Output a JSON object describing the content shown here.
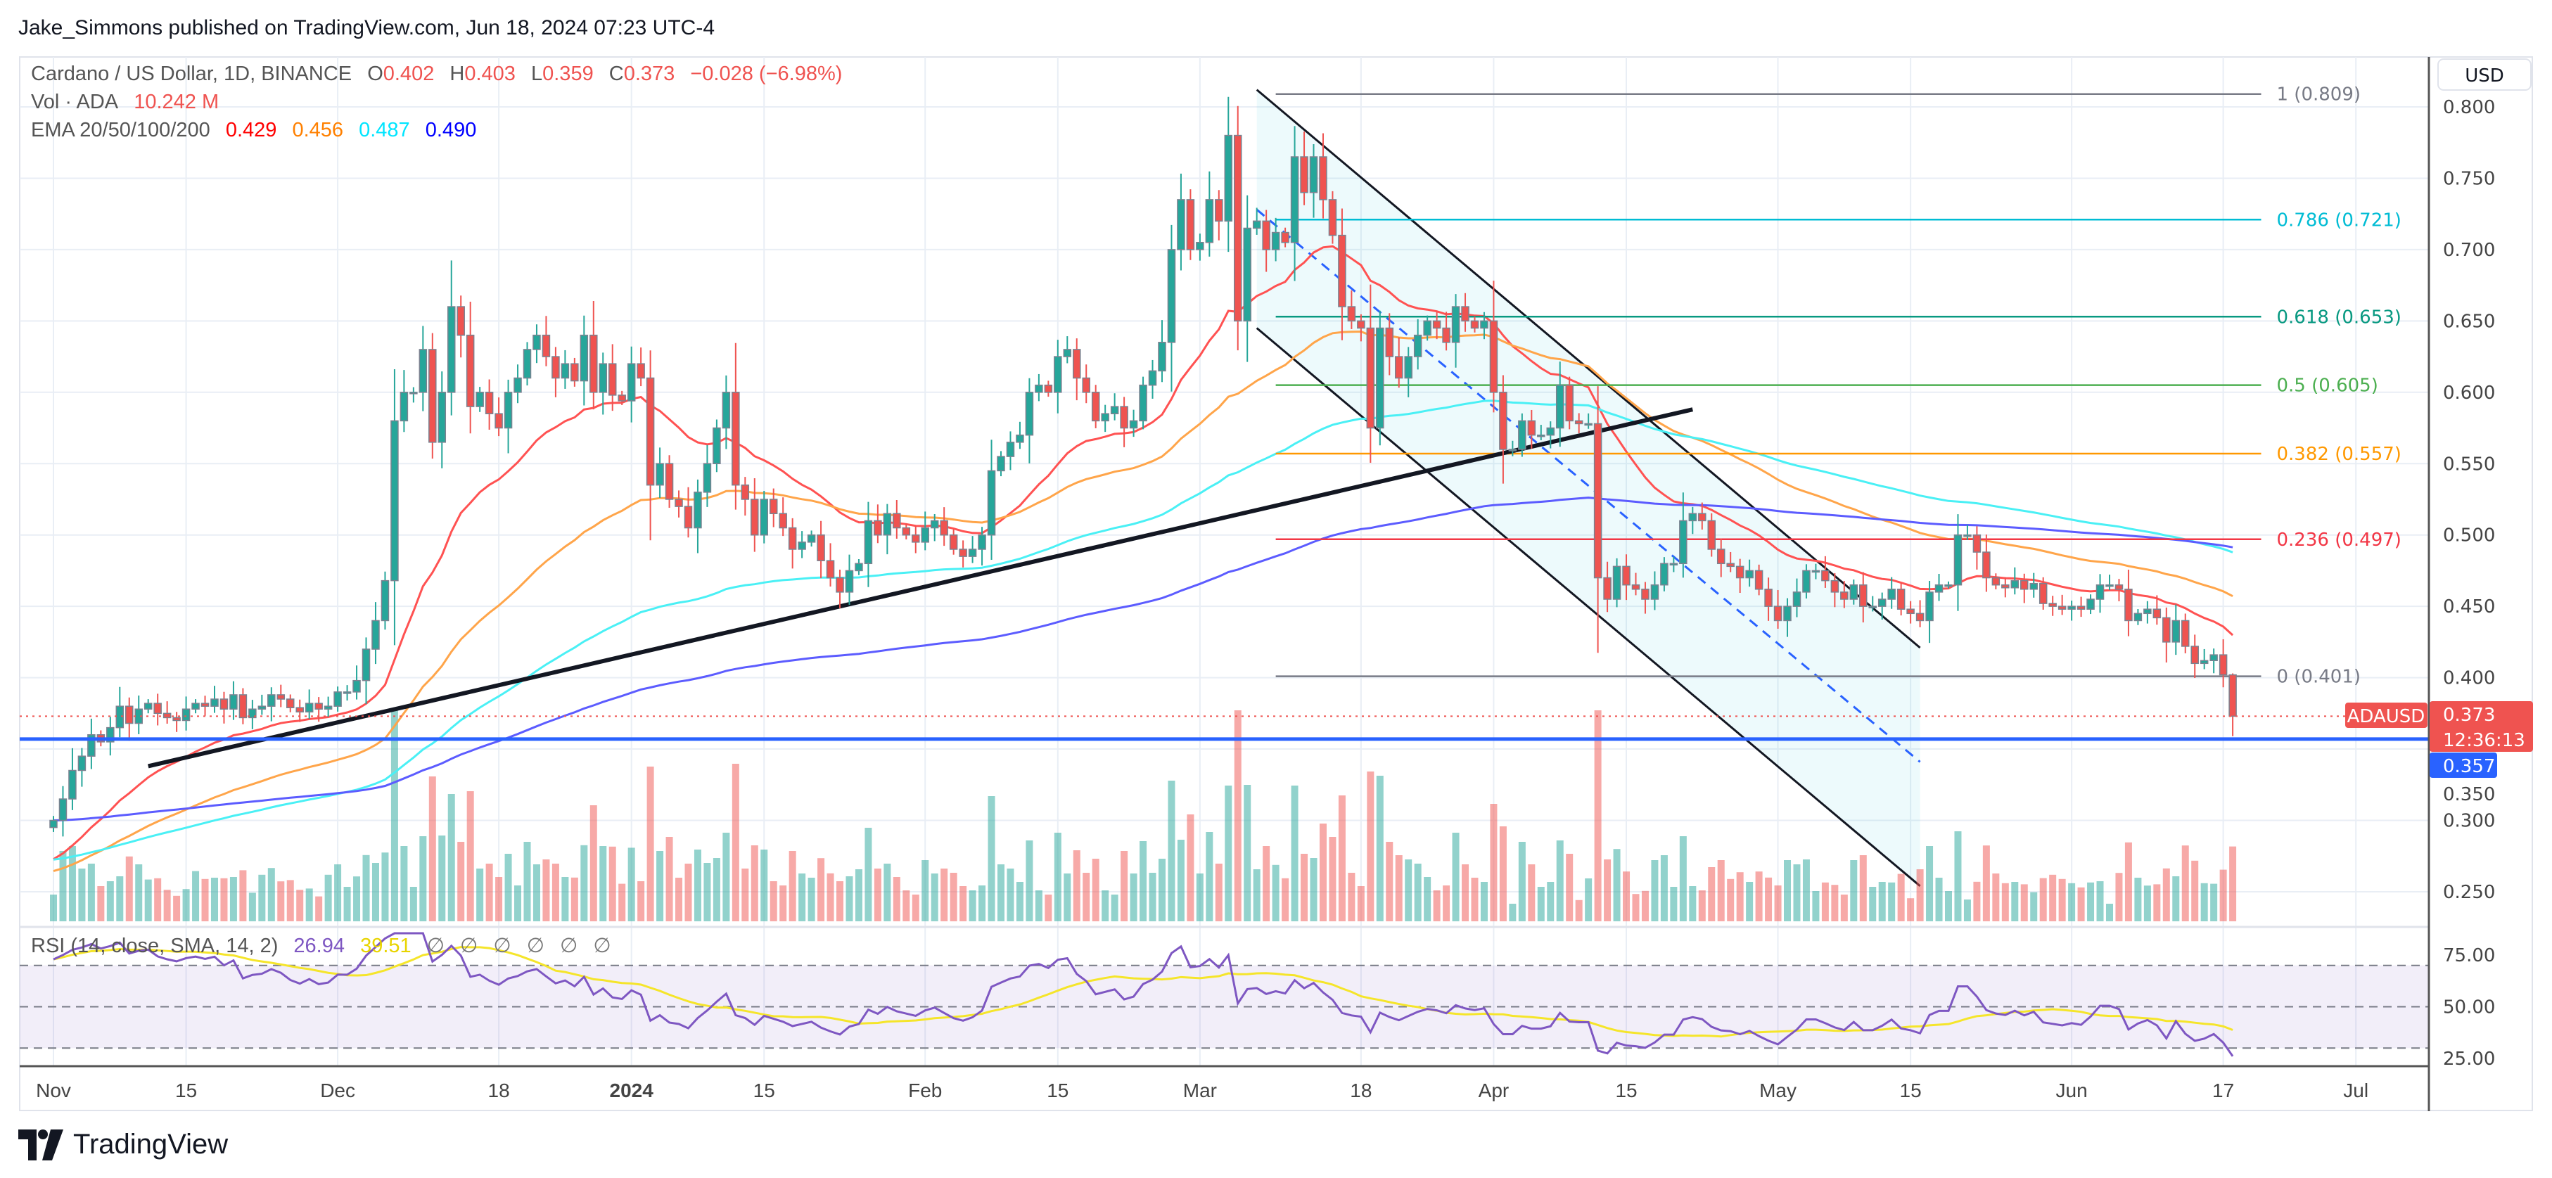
{
  "header": {
    "title": "Jake_Simmons published on TradingView.com, Jun 18, 2024 07:23 UTC-4"
  },
  "legend": {
    "symbol": "Cardano / US Dollar, 1D, BINANCE",
    "o_label": "O",
    "o": "0.402",
    "h_label": "H",
    "h": "0.403",
    "l_label": "L",
    "l": "0.359",
    "c_label": "C",
    "c": "0.373",
    "change": "−0.028 (−6.98%)",
    "vol_label": "Vol · ADA",
    "vol": "10.242 M",
    "ema_label": "EMA 20/50/100/200",
    "ema20": "0.429",
    "ema50": "0.456",
    "ema100": "0.487",
    "ema200": "0.490"
  },
  "rsi_legend": {
    "label": "RSI (14, close, SMA, 14, 2)",
    "rsi": "26.94",
    "sma": "39.51",
    "nulls": [
      "∅",
      "∅",
      "∅",
      "∅",
      "∅",
      "∅"
    ]
  },
  "price_axis": {
    "currency": "USD",
    "ticks": [
      "0.800",
      "0.750",
      "0.700",
      "0.650",
      "0.600",
      "0.550",
      "0.500",
      "0.450",
      "0.400",
      "0.350",
      "0.300",
      "0.250"
    ],
    "last_price": "0.373",
    "countdown": "12:36:13",
    "symbol_tag": "ADAUSD",
    "support_price": "0.357"
  },
  "rsi_axis": {
    "ticks": [
      "75.00",
      "50.00",
      "25.00"
    ]
  },
  "time_axis": [
    {
      "label": "Nov",
      "date": "2023-11-01"
    },
    {
      "label": "15",
      "date": "2023-11-15"
    },
    {
      "label": "Dec",
      "date": "2023-12-01"
    },
    {
      "label": "18",
      "date": "2023-12-18"
    },
    {
      "label": "2024",
      "date": "2024-01-01"
    },
    {
      "label": "15",
      "date": "2024-01-15"
    },
    {
      "label": "Feb",
      "date": "2024-02-01"
    },
    {
      "label": "15",
      "date": "2024-02-15"
    },
    {
      "label": "Mar",
      "date": "2024-03-01"
    },
    {
      "label": "18",
      "date": "2024-03-18"
    },
    {
      "label": "Apr",
      "date": "2024-04-01"
    },
    {
      "label": "15",
      "date": "2024-04-15"
    },
    {
      "label": "May",
      "date": "2024-05-01"
    },
    {
      "label": "15",
      "date": "2024-05-15"
    },
    {
      "label": "Jun",
      "date": "2024-06-01"
    },
    {
      "label": "17",
      "date": "2024-06-17"
    },
    {
      "label": "Jul",
      "date": "2024-07-01"
    }
  ],
  "chart_data": {
    "type": "candlestick",
    "ylim": [
      0.25,
      0.8
    ],
    "rsi_ylim": [
      25,
      75
    ],
    "colors": {
      "up": "#26a69a",
      "down": "#ef5350",
      "ema20": "#ff0000",
      "ema50": "#ff8000",
      "ema100": "#00ffff",
      "ema200": "#0000ff",
      "rsi": "#7e57c2",
      "rsi_sma": "#f5e52a",
      "support": "#2962ff"
    },
    "closes": {
      "2023-11": [
        0.3,
        0.315,
        0.335,
        0.345,
        0.36,
        0.355,
        0.365,
        0.38,
        0.368,
        0.378,
        0.382,
        0.375,
        0.372,
        0.37,
        0.378,
        0.382,
        0.38,
        0.385,
        0.378,
        0.388,
        0.372,
        0.378,
        0.38,
        0.388,
        0.385,
        0.379,
        0.376,
        0.382,
        0.378,
        0.38
      ],
      "2023-12": [
        0.39,
        0.39,
        0.398,
        0.42,
        0.44,
        0.468,
        0.58,
        0.6,
        0.6,
        0.63,
        0.565,
        0.6,
        0.66,
        0.64,
        0.59,
        0.6,
        0.585,
        0.575,
        0.6,
        0.61,
        0.63,
        0.64,
        0.625,
        0.61,
        0.62,
        0.608,
        0.64,
        0.6,
        0.62,
        0.598,
        0.594
      ],
      "2024-01": [
        0.62,
        0.61,
        0.535,
        0.55,
        0.525,
        0.52,
        0.505,
        0.53,
        0.55,
        0.575,
        0.6,
        0.535,
        0.525,
        0.5,
        0.525,
        0.515,
        0.505,
        0.49,
        0.495,
        0.5,
        0.482,
        0.47,
        0.46,
        0.475,
        0.48,
        0.51,
        0.5,
        0.515,
        0.505,
        0.5,
        0.495
      ],
      "2024-02": [
        0.505,
        0.51,
        0.5,
        0.49,
        0.485,
        0.49,
        0.5,
        0.545,
        0.555,
        0.565,
        0.57,
        0.6,
        0.605,
        0.6,
        0.625,
        0.63,
        0.61,
        0.6,
        0.58,
        0.585,
        0.59,
        0.575,
        0.58,
        0.605,
        0.615,
        0.635,
        0.7,
        0.735,
        0.7
      ],
      "2024-03": [
        0.705,
        0.735,
        0.72,
        0.78,
        0.65,
        0.715,
        0.72,
        0.7,
        0.712,
        0.705,
        0.765,
        0.74,
        0.765,
        0.735,
        0.71,
        0.66,
        0.65,
        0.645,
        0.575,
        0.645,
        0.625,
        0.61,
        0.625,
        0.64,
        0.65,
        0.645,
        0.635,
        0.66,
        0.65,
        0.645,
        0.65
      ],
      "2024-04": [
        0.6,
        0.56,
        0.56,
        0.58,
        0.57,
        0.57,
        0.575,
        0.605,
        0.58,
        0.578,
        0.578,
        0.47,
        0.455,
        0.478,
        0.465,
        0.462,
        0.455,
        0.465,
        0.48,
        0.48,
        0.51,
        0.515,
        0.51,
        0.49,
        0.48,
        0.478,
        0.47,
        0.475,
        0.462,
        0.45
      ],
      "2024-05": [
        0.44,
        0.45,
        0.46,
        0.475,
        0.475,
        0.468,
        0.46,
        0.455,
        0.465,
        0.45,
        0.45,
        0.455,
        0.462,
        0.448,
        0.445,
        0.44,
        0.46,
        0.465,
        0.465,
        0.5,
        0.5,
        0.488,
        0.47,
        0.465,
        0.463,
        0.468,
        0.462,
        0.466,
        0.452,
        0.45,
        0.448
      ],
      "2024-06": [
        0.45,
        0.448,
        0.455,
        0.465,
        0.465,
        0.462,
        0.44,
        0.445,
        0.448,
        0.442,
        0.425,
        0.44,
        0.422,
        0.41,
        0.412,
        0.416,
        0.402,
        0.373
      ]
    },
    "fib_levels": [
      {
        "label": "1 (0.809)",
        "price": 0.809,
        "color": "#787b86"
      },
      {
        "label": "0.786 (0.721)",
        "price": 0.721,
        "color": "#00bcd4"
      },
      {
        "label": "0.618 (0.653)",
        "price": 0.653,
        "color": "#089981"
      },
      {
        "label": "0.5 (0.605)",
        "price": 0.605,
        "color": "#4caf50"
      },
      {
        "label": "0.382 (0.557)",
        "price": 0.557,
        "color": "#ff9800"
      },
      {
        "label": "0.236 (0.497)",
        "price": 0.497,
        "color": "#f23645"
      },
      {
        "label": "0 (0.401)",
        "price": 0.401,
        "color": "#787b86"
      }
    ],
    "fib_range": [
      "2024-03-09",
      "2024-06-21"
    ],
    "trendline": [
      {
        "date": "2023-11-11",
        "price": 0.338
      },
      {
        "date": "2024-04-22",
        "price": 0.588
      }
    ],
    "channel": {
      "upper": [
        {
          "date": "2024-03-07",
          "price": 0.812
        },
        {
          "date": "2024-05-16",
          "price": 0.421
        }
      ],
      "middle": [
        {
          "date": "2024-03-07",
          "price": 0.728
        },
        {
          "date": "2024-05-16",
          "price": 0.341
        }
      ],
      "lower": [
        {
          "date": "2024-03-07",
          "price": 0.645
        },
        {
          "date": "2024-05-16",
          "price": 0.254
        }
      ]
    },
    "support_level": 0.357,
    "last_close": 0.373,
    "rsi_levels": [
      70,
      50,
      30
    ]
  },
  "footer": {
    "brand": "TradingView"
  }
}
